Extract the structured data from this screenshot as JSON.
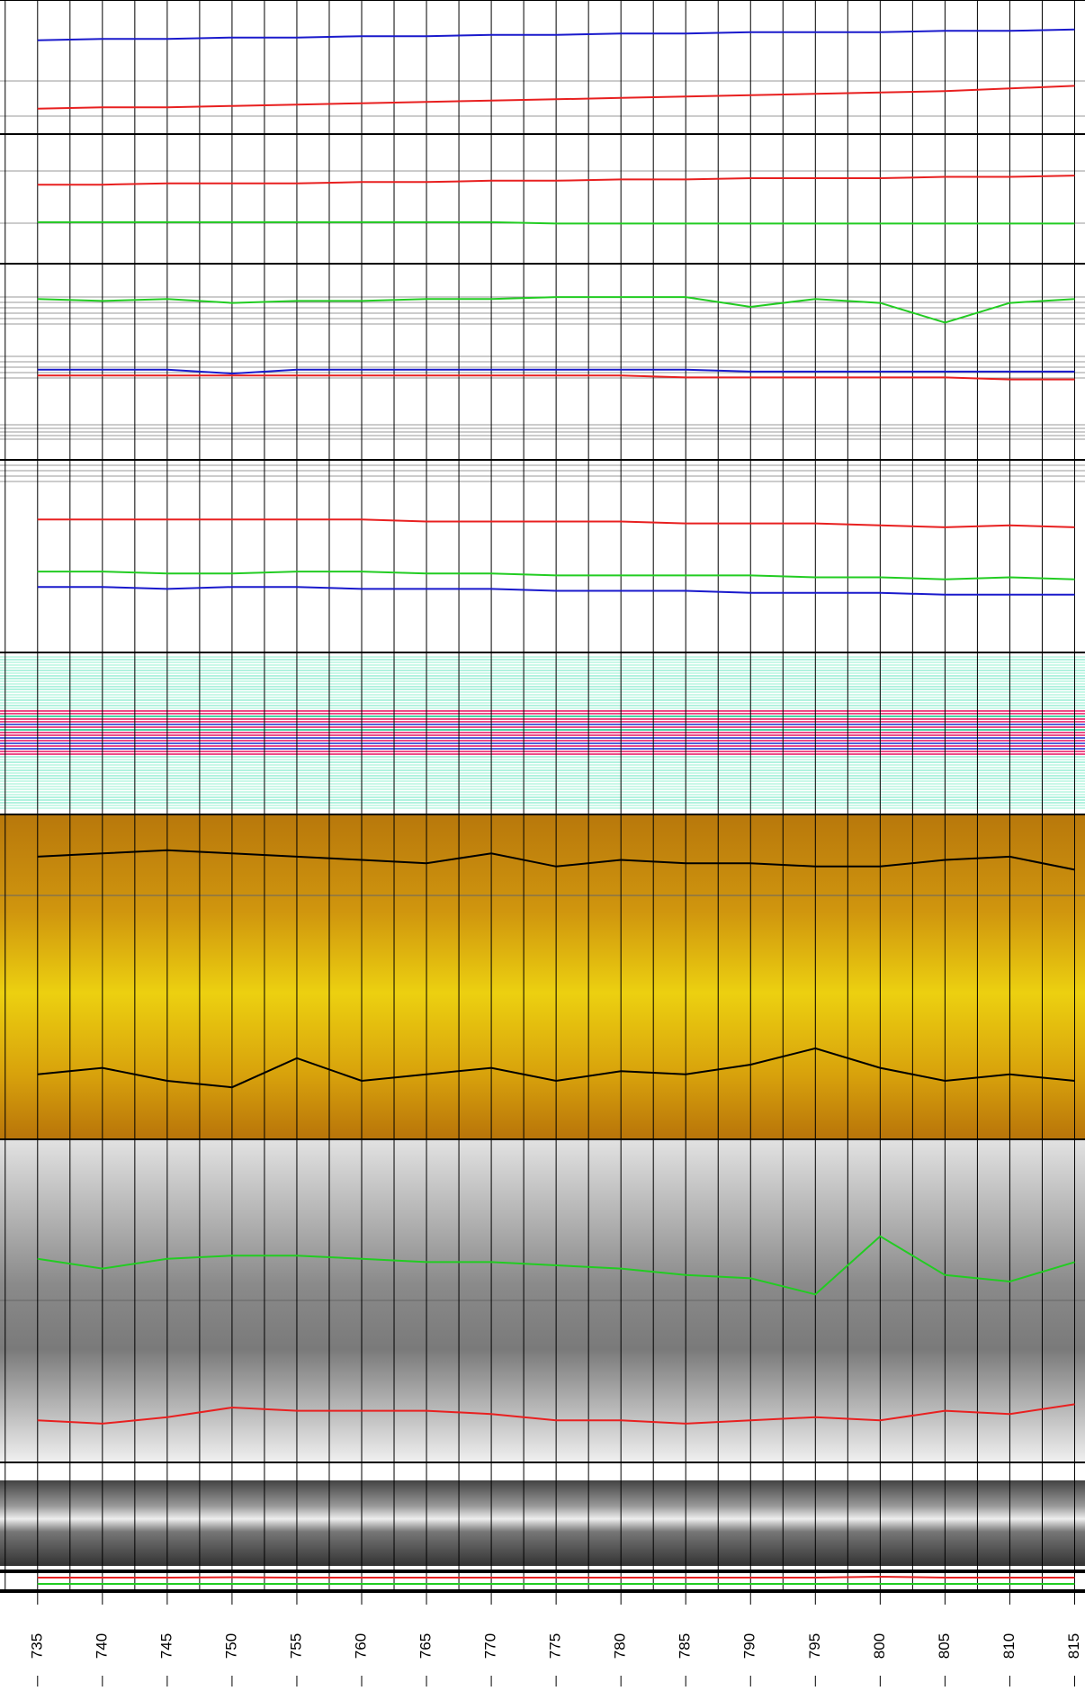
{
  "chart_data": {
    "type": "well-log",
    "x": [
      735,
      740,
      745,
      750,
      755,
      760,
      765,
      770,
      775,
      780,
      785,
      790,
      795,
      800,
      805,
      810,
      815
    ],
    "xlim": [
      732.1,
      815.8
    ],
    "xticks": [
      735,
      740,
      745,
      750,
      755,
      760,
      765,
      770,
      775,
      780,
      785,
      790,
      795,
      800,
      805,
      810,
      815
    ],
    "tracks": [
      {
        "ylim": [
          0,
          100
        ],
        "series": [
          {
            "color": "#1a1acc",
            "values": [
              70,
              71,
              71,
              72,
              72,
              73,
              73,
              74,
              74,
              75,
              75,
              76,
              76,
              76,
              77,
              77,
              78
            ]
          },
          {
            "color": "#e82020",
            "values": [
              19,
              20,
              20,
              21,
              22,
              23,
              24,
              25,
              26,
              27,
              28,
              29,
              30,
              31,
              32,
              34,
              36
            ]
          }
        ]
      },
      {
        "ylim": [
          0,
          100
        ],
        "series": [
          {
            "color": "#e82020",
            "values": [
              61,
              61,
              62,
              62,
              62,
              63,
              63,
              64,
              64,
              65,
              65,
              66,
              66,
              66,
              67,
              67,
              68
            ]
          },
          {
            "color": "#22cc22",
            "values": [
              32,
              32,
              32,
              32,
              32,
              32,
              32,
              32,
              31,
              31,
              31,
              31,
              31,
              31,
              31,
              31,
              31
            ]
          }
        ]
      },
      {
        "ylim": [
          0,
          100
        ],
        "series": [
          {
            "color": "#22cc22",
            "values": [
              82,
              81,
              82,
              80,
              81,
              81,
              82,
              82,
              83,
              83,
              83,
              78,
              82,
              80,
              70,
              80,
              82
            ]
          },
          {
            "color": "#1a1acc",
            "values": [
              46,
              46,
              46,
              44,
              46,
              46,
              46,
              46,
              46,
              46,
              46,
              45,
              45,
              45,
              45,
              45,
              45
            ]
          },
          {
            "color": "#e82020",
            "values": [
              43,
              43,
              43,
              43,
              43,
              43,
              43,
              43,
              43,
              43,
              42,
              42,
              42,
              42,
              42,
              41,
              41
            ]
          }
        ]
      },
      {
        "ylim": [
          0,
          100
        ],
        "series": [
          {
            "color": "#e82020",
            "values": [
              69,
              69,
              69,
              69,
              69,
              69,
              68,
              68,
              68,
              68,
              67,
              67,
              67,
              66,
              65,
              66,
              65
            ]
          },
          {
            "color": "#22cc22",
            "values": [
              42,
              42,
              41,
              41,
              42,
              42,
              41,
              41,
              40,
              40,
              40,
              40,
              39,
              39,
              38,
              39,
              38
            ]
          },
          {
            "color": "#1a1acc",
            "values": [
              34,
              34,
              33,
              34,
              34,
              33,
              33,
              33,
              32,
              32,
              32,
              31,
              31,
              31,
              30,
              30,
              30
            ]
          }
        ]
      },
      {
        "ylim": [
          0,
          100
        ],
        "series": []
      },
      {
        "ylim": [
          0,
          100
        ],
        "series": [
          {
            "color": "#000000",
            "values": [
              87,
              88,
              89,
              88,
              87,
              86,
              85,
              88,
              84,
              86,
              85,
              85,
              84,
              84,
              86,
              87,
              83
            ]
          },
          {
            "color": "#000000",
            "values": [
              20,
              22,
              18,
              16,
              25,
              18,
              20,
              22,
              18,
              21,
              20,
              23,
              28,
              22,
              18,
              20,
              18
            ]
          }
        ]
      },
      {
        "ylim": [
          0,
          100
        ],
        "series": [
          {
            "color": "#22cc22",
            "values": [
              63,
              60,
              63,
              64,
              64,
              63,
              62,
              62,
              61,
              60,
              58,
              57,
              52,
              70,
              58,
              56,
              62
            ]
          },
          {
            "color": "#e82020",
            "values": [
              13,
              12,
              14,
              17,
              16,
              16,
              16,
              15,
              13,
              13,
              12,
              13,
              14,
              13,
              16,
              15,
              18
            ]
          }
        ]
      },
      {
        "ylim": [
          0,
          100
        ],
        "series": []
      },
      {
        "ylim": [
          0,
          100
        ],
        "series": [
          {
            "color": "#e82020",
            "values": [
              70,
              70,
              70,
              72,
              70,
              70,
              70,
              70,
              70,
              70,
              70,
              70,
              70,
              75,
              70,
              70,
              70
            ]
          },
          {
            "color": "#22cc22",
            "values": [
              35,
              35,
              35,
              35,
              35,
              35,
              35,
              35,
              35,
              35,
              35,
              35,
              35,
              35,
              35,
              35,
              35
            ]
          }
        ]
      }
    ]
  }
}
